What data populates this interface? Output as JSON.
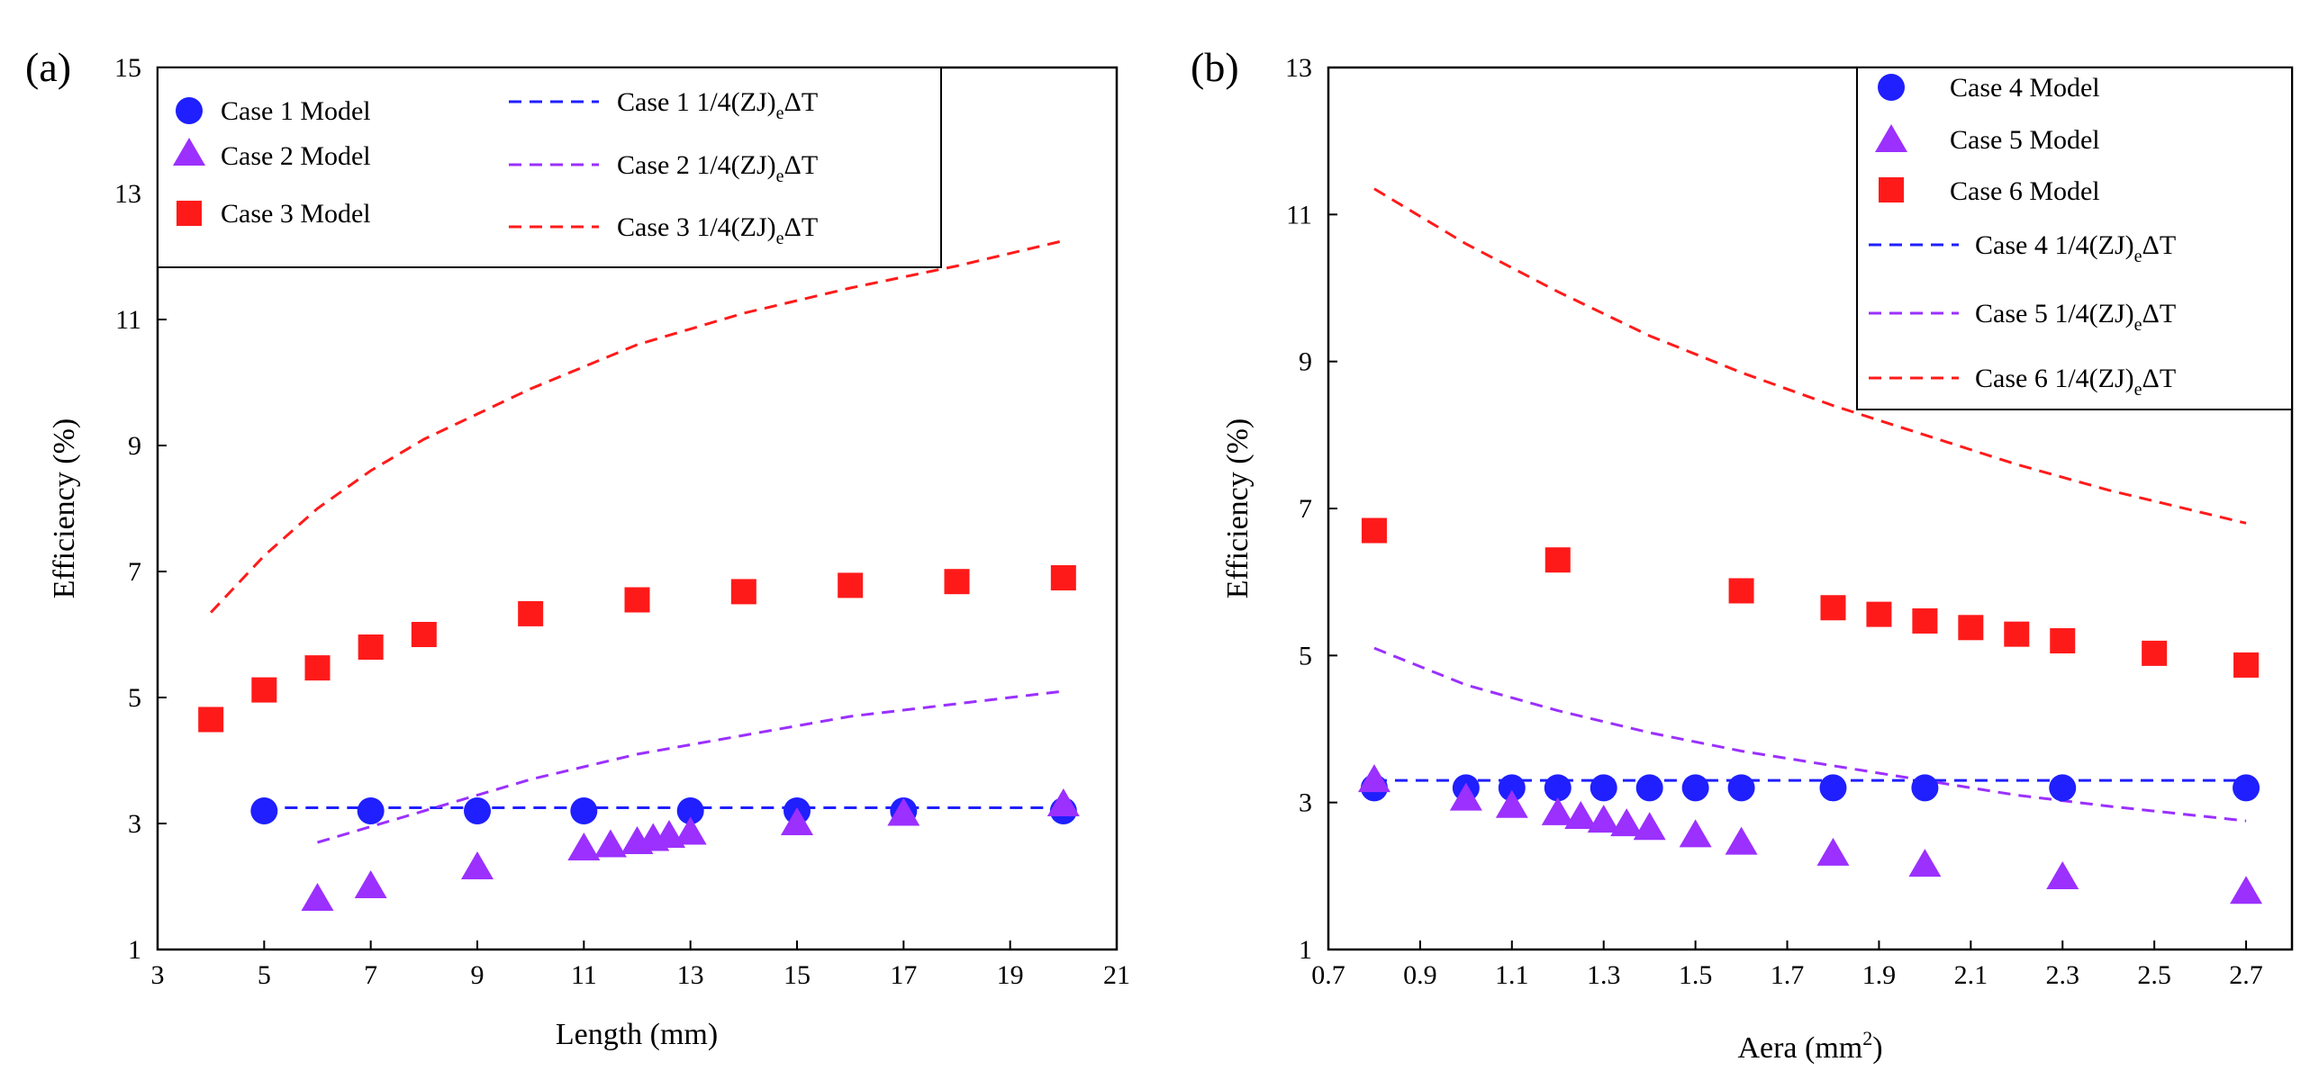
{
  "figure": {
    "panels": [
      {
        "label": "(a)",
        "xlabel": "Length (mm)",
        "ylabel": "Efficiency (%)",
        "xlim": [
          3,
          21
        ],
        "ylim": [
          1,
          15
        ],
        "xticks": [
          "3",
          "5",
          "7",
          "9",
          "11",
          "13",
          "15",
          "17",
          "19",
          "21"
        ],
        "yticks": [
          "1",
          "3",
          "5",
          "7",
          "9",
          "11",
          "13",
          "15"
        ]
      },
      {
        "label": "(b)",
        "xlabel": "Aera (mm",
        "xlabel_sup": "2",
        "xlabel_end": ")",
        "ylabel": "Efficiency (%)",
        "xlim": [
          0.7,
          2.8
        ],
        "ylim": [
          1,
          13
        ],
        "xticks": [
          "0.7",
          "0.9",
          "1.1",
          "1.3",
          "1.5",
          "1.7",
          "1.9",
          "2.1",
          "2.3",
          "2.5",
          "2.7"
        ],
        "yticks": [
          "1",
          "3",
          "5",
          "7",
          "9",
          "11",
          "13"
        ]
      }
    ]
  },
  "chart_data": [
    {
      "type": "scatter",
      "panel": "(a)",
      "xlabel": "Length (mm)",
      "ylabel": "Efficiency (%)",
      "xlim": [
        3,
        21
      ],
      "ylim": [
        1,
        15
      ],
      "legend_position": "top",
      "legend_model": [
        "Case 1 Model",
        "Case 2 Model",
        "Case 3 Model"
      ],
      "legend_line": [
        {
          "prefix": "Case 1 1/4(ZJ)",
          "sub": "e",
          "suffix": "ΔT"
        },
        {
          "prefix": "Case 2 1/4(ZJ)",
          "sub": "e",
          "suffix": "ΔT"
        },
        {
          "prefix": "Case 3 1/4(ZJ)",
          "sub": "e",
          "suffix": "ΔT"
        }
      ],
      "series": [
        {
          "name": "Case 1 Model",
          "marker": "circle",
          "color": "#1f1fff",
          "x": [
            5,
            7,
            9,
            11,
            13,
            15,
            17,
            20
          ],
          "y": [
            3.2,
            3.2,
            3.2,
            3.2,
            3.2,
            3.2,
            3.2,
            3.2
          ]
        },
        {
          "name": "Case 2 Model",
          "marker": "triangle",
          "color": "#9b30ff",
          "x": [
            6,
            7,
            9,
            11,
            11.5,
            12,
            12.3,
            12.6,
            13,
            15,
            17,
            20
          ],
          "y": [
            1.8,
            2.0,
            2.3,
            2.6,
            2.65,
            2.7,
            2.75,
            2.8,
            2.85,
            3.0,
            3.15,
            3.3
          ]
        },
        {
          "name": "Case 3 Model",
          "marker": "square",
          "color": "#ff1a1a",
          "x": [
            4,
            5,
            6,
            7,
            8,
            10,
            12,
            14,
            16,
            18,
            20
          ],
          "y": [
            4.65,
            5.12,
            5.47,
            5.8,
            6.0,
            6.33,
            6.55,
            6.68,
            6.78,
            6.84,
            6.9
          ]
        },
        {
          "name": "Case 1 1/4(ZJ)eΔT",
          "style": "dashed",
          "color": "#1f1fff",
          "x": [
            5,
            20
          ],
          "y": [
            3.25,
            3.25
          ]
        },
        {
          "name": "Case 2 1/4(ZJ)eΔT",
          "style": "dashed",
          "color": "#9b30ff",
          "x": [
            6,
            8,
            10,
            12,
            14,
            16,
            18,
            20
          ],
          "y": [
            2.7,
            3.2,
            3.7,
            4.1,
            4.4,
            4.7,
            4.9,
            5.1
          ]
        },
        {
          "name": "Case 3 1/4(ZJ)eΔT",
          "style": "dashed",
          "color": "#ff1a1a",
          "x": [
            4,
            5,
            6,
            7,
            8,
            10,
            12,
            14,
            16,
            18,
            20
          ],
          "y": [
            6.35,
            7.25,
            8.0,
            8.6,
            9.1,
            9.9,
            10.6,
            11.1,
            11.5,
            11.85,
            12.25
          ]
        }
      ]
    },
    {
      "type": "scatter",
      "panel": "(b)",
      "xlabel": "Aera (mm2)",
      "ylabel": "Efficiency (%)",
      "xlim": [
        0.7,
        2.8
      ],
      "ylim": [
        1,
        13
      ],
      "legend_position": "top-right",
      "legend_model": [
        "Case 4 Model",
        "Case 5 Model",
        "Case 6 Model"
      ],
      "legend_line": [
        {
          "prefix": "Case 4 1/4(ZJ)",
          "sub": "e",
          "suffix": "ΔT"
        },
        {
          "prefix": "Case 5 1/4(ZJ)",
          "sub": "e",
          "suffix": "ΔT"
        },
        {
          "prefix": "Case 6 1/4(ZJ)",
          "sub": "e",
          "suffix": "ΔT"
        }
      ],
      "series": [
        {
          "name": "Case 4 Model",
          "marker": "circle",
          "color": "#1f1fff",
          "x": [
            0.8,
            1.0,
            1.1,
            1.2,
            1.3,
            1.4,
            1.5,
            1.6,
            1.8,
            2.0,
            2.3,
            2.7
          ],
          "y": [
            3.2,
            3.2,
            3.2,
            3.2,
            3.2,
            3.2,
            3.2,
            3.2,
            3.2,
            3.2,
            3.2,
            3.2
          ]
        },
        {
          "name": "Case 5 Model",
          "marker": "triangle",
          "color": "#9b30ff",
          "x": [
            0.8,
            1.0,
            1.1,
            1.2,
            1.25,
            1.3,
            1.35,
            1.4,
            1.5,
            1.6,
            1.8,
            2.0,
            2.3,
            2.7
          ],
          "y": [
            3.3,
            3.05,
            2.95,
            2.85,
            2.8,
            2.75,
            2.7,
            2.65,
            2.55,
            2.45,
            2.3,
            2.15,
            1.98,
            1.78
          ]
        },
        {
          "name": "Case 6 Model",
          "marker": "square",
          "color": "#ff1a1a",
          "x": [
            0.8,
            1.2,
            1.6,
            1.8,
            1.9,
            2.0,
            2.1,
            2.2,
            2.3,
            2.5,
            2.7
          ],
          "y": [
            6.7,
            6.3,
            5.88,
            5.65,
            5.56,
            5.47,
            5.38,
            5.29,
            5.2,
            5.03,
            4.87
          ]
        },
        {
          "name": "Case 4 1/4(ZJ)eΔT",
          "style": "dashed",
          "color": "#1f1fff",
          "x": [
            0.8,
            2.7
          ],
          "y": [
            3.3,
            3.3
          ]
        },
        {
          "name": "Case 5 1/4(ZJ)eΔT",
          "style": "dashed",
          "color": "#9b30ff",
          "x": [
            0.8,
            1.0,
            1.2,
            1.4,
            1.6,
            1.8,
            2.0,
            2.2,
            2.4,
            2.7
          ],
          "y": [
            5.1,
            4.6,
            4.25,
            3.95,
            3.7,
            3.5,
            3.3,
            3.1,
            2.95,
            2.75
          ]
        },
        {
          "name": "Case 6 1/4(ZJ)eΔT",
          "style": "dashed",
          "color": "#ff1a1a",
          "x": [
            0.8,
            1.0,
            1.2,
            1.4,
            1.6,
            1.8,
            2.0,
            2.2,
            2.4,
            2.7
          ],
          "y": [
            11.35,
            10.6,
            9.95,
            9.35,
            8.85,
            8.4,
            8.0,
            7.6,
            7.25,
            6.8
          ]
        }
      ]
    }
  ]
}
